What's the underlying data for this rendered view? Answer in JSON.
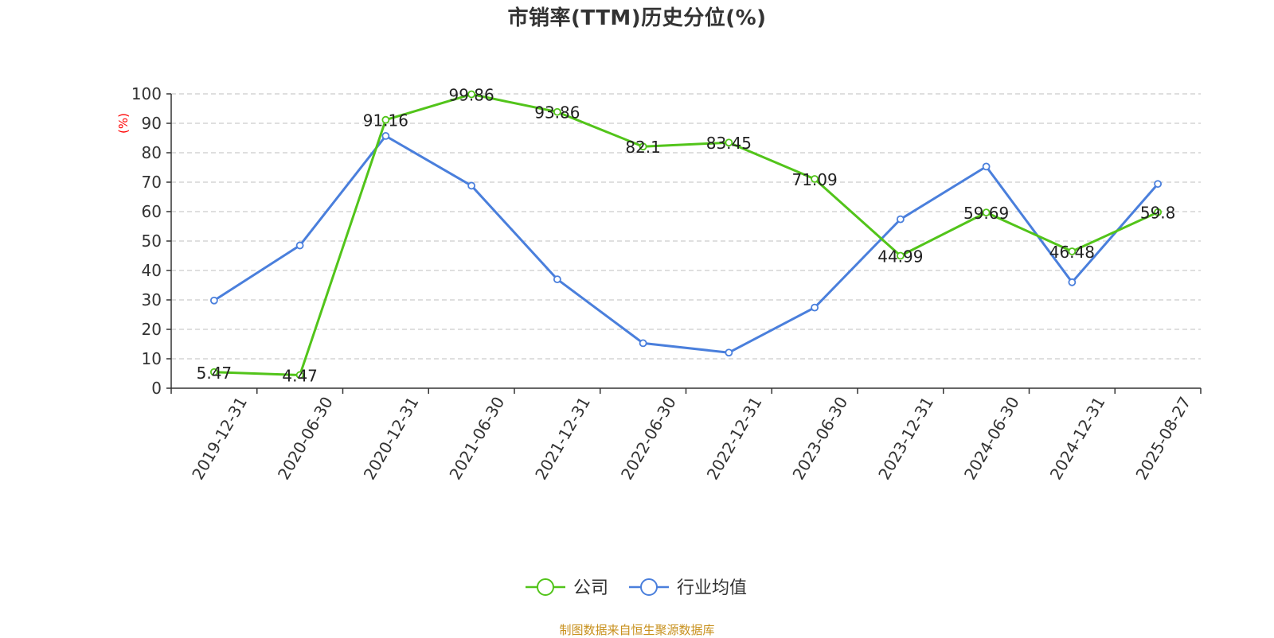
{
  "chart_data": {
    "type": "line",
    "title": "市销率(TTM)历史分位(%)",
    "ylabel": "(%)",
    "xlabel": "",
    "ylim": [
      0,
      100
    ],
    "yticks": [
      0,
      10,
      20,
      30,
      40,
      50,
      60,
      70,
      80,
      90,
      100
    ],
    "categories": [
      "2019-12-31",
      "2020-06-30",
      "2020-12-31",
      "2021-06-30",
      "2021-12-31",
      "2022-06-30",
      "2022-12-31",
      "2023-06-30",
      "2023-12-31",
      "2024-06-30",
      "2024-12-31",
      "2025-08-27"
    ],
    "grid": true,
    "legend_position": "bottom-center",
    "series": [
      {
        "name": "公司",
        "color": "#52c41a",
        "values": [
          5.47,
          4.47,
          91.16,
          99.86,
          93.86,
          82.1,
          83.45,
          71.09,
          44.99,
          59.69,
          46.48,
          59.8
        ],
        "data_labels": [
          "5.47",
          "4.47",
          "91.16",
          "99.86",
          "93.86",
          "82.1",
          "83.45",
          "71.09",
          "44.99",
          "59.69",
          "46.48",
          "59.8"
        ]
      },
      {
        "name": "行业均值",
        "color": "#4a7fdc",
        "values": [
          29.8,
          48.5,
          85.7,
          68.8,
          37.0,
          15.3,
          12.1,
          27.4,
          57.4,
          75.3,
          36.0,
          69.4
        ]
      }
    ]
  },
  "source_text": "制图数据来自恒生聚源数据库"
}
